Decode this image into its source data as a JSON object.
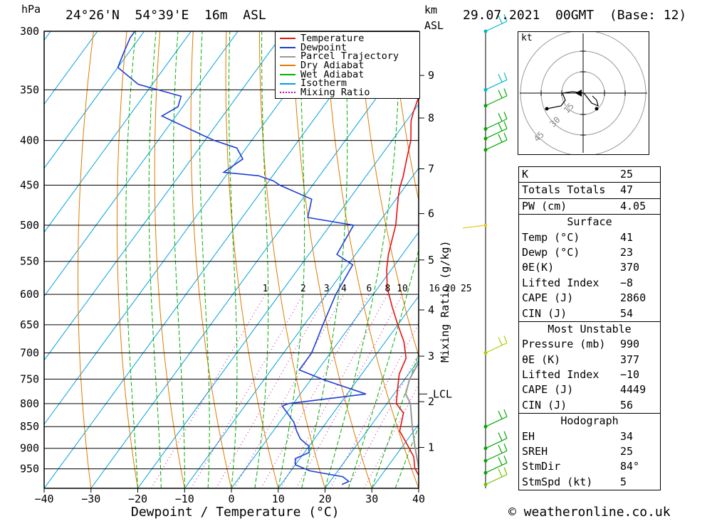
{
  "header": {
    "units_left": "hPa",
    "location": "24°26'N  54°39'E  16m  ASL",
    "km": "km",
    "asl": "ASL",
    "datetime": "29.07.2021  00GMT  (Base: 12)"
  },
  "chart_data": {
    "type": "line",
    "title": "24°26'N  54°39'E  16m  ASL",
    "xlabel": "Dewpoint / Temperature (°C)",
    "ylabel": "hPa",
    "xlim": [
      -40,
      40
    ],
    "x_ticks": [
      "−40",
      "−30",
      "−20",
      "−10",
      "0",
      "10",
      "20",
      "30",
      "40"
    ],
    "pressure_levels": [
      300,
      350,
      400,
      450,
      500,
      550,
      600,
      650,
      700,
      750,
      800,
      850,
      900,
      950
    ],
    "km_ticks": [
      "1",
      "2",
      "3",
      "4",
      "5",
      "6",
      "7",
      "8",
      "9"
    ],
    "km_pressures": [
      898,
      796,
      706,
      625,
      548,
      485,
      431,
      377,
      337
    ],
    "lcl_label": "LCL",
    "lcl_pressure": 780,
    "mixing_ratio_axis_label": "Mixing Ratio (g/kg)",
    "mixing_ratio_labels": [
      "1",
      "2",
      "3",
      "4",
      "6",
      "8",
      "10",
      "16",
      "20",
      "25"
    ],
    "legend": [
      "Temperature",
      "Dewpoint",
      "Parcel Trajectory",
      "Dry Adiabat",
      "Wet Adiabat",
      "Isotherm",
      "Mixing Ratio"
    ],
    "legend_placement": "top-right",
    "series": [
      {
        "name": "Temperature",
        "color": "#e81010",
        "points": [
          [
            41,
            990
          ],
          [
            39,
            975
          ],
          [
            37.5,
            962
          ],
          [
            36,
            948
          ],
          [
            34,
            920
          ],
          [
            30,
            885
          ],
          [
            27,
            860
          ],
          [
            25,
            820
          ],
          [
            22,
            800
          ],
          [
            20,
            770
          ],
          [
            18,
            740
          ],
          [
            17,
            710
          ],
          [
            14,
            680
          ],
          [
            10,
            650
          ],
          [
            6,
            620
          ],
          [
            2,
            590
          ],
          [
            -1,
            562
          ],
          [
            -3,
            540
          ],
          [
            -6,
            500
          ],
          [
            -10,
            463
          ],
          [
            -11,
            453
          ],
          [
            -12,
            440
          ],
          [
            -14,
            420
          ],
          [
            -16,
            400
          ],
          [
            -19,
            380
          ],
          [
            -20,
            370
          ],
          [
            -21,
            358
          ]
        ]
      },
      {
        "name": "Dewpoint",
        "color": "#1c3fd6",
        "points": [
          [
            23,
            990
          ],
          [
            24,
            982
          ],
          [
            22,
            970
          ],
          [
            14,
            955
          ],
          [
            10,
            940
          ],
          [
            9,
            925
          ],
          [
            11,
            910
          ],
          [
            10,
            895
          ],
          [
            7,
            878
          ],
          [
            5,
            860
          ],
          [
            3,
            840
          ],
          [
            -2,
            805
          ],
          [
            -1,
            800
          ],
          [
            14,
            780
          ],
          [
            3,
            752
          ],
          [
            -4,
            732
          ],
          [
            -4,
            720
          ],
          [
            -4,
            700
          ],
          [
            -6,
            650
          ],
          [
            -8,
            600
          ],
          [
            -9,
            555
          ],
          [
            -10,
            552
          ],
          [
            -14,
            540
          ],
          [
            -15,
            500
          ],
          [
            -26,
            490
          ],
          [
            -28,
            467
          ],
          [
            -37,
            450
          ],
          [
            -39,
            445
          ],
          [
            -43,
            439
          ],
          [
            -51,
            435
          ],
          [
            -49,
            420
          ],
          [
            -52,
            408
          ],
          [
            -58,
            400
          ],
          [
            -61,
            395
          ],
          [
            -73,
            375
          ],
          [
            -71,
            366
          ],
          [
            -72,
            356
          ],
          [
            -83,
            345
          ],
          [
            -90,
            330
          ],
          [
            -91,
            318
          ],
          [
            -92,
            305
          ],
          [
            -92,
            300
          ]
        ]
      },
      {
        "name": "Parcel Trajectory",
        "color": "#999999",
        "points": [
          [
            41,
            990
          ],
          [
            37,
            950
          ],
          [
            33,
            900
          ],
          [
            29,
            850
          ],
          [
            25,
            800
          ],
          [
            22.5,
            780
          ],
          [
            21,
            750
          ],
          [
            20,
            700
          ],
          [
            18,
            650
          ],
          [
            16,
            600
          ],
          [
            13,
            550
          ],
          [
            9,
            500
          ],
          [
            4,
            450
          ],
          [
            -3,
            400
          ],
          [
            -12,
            350
          ]
        ]
      }
    ]
  },
  "hodograph": {
    "unit": "kt",
    "ring_labels": [
      "15",
      "30",
      "45"
    ]
  },
  "indices": {
    "rows": [
      {
        "label": "K",
        "value": "25"
      },
      {
        "label": "Totals Totals",
        "value": "47"
      },
      {
        "label": "PW (cm)",
        "value": "4.05"
      }
    ]
  },
  "surface": {
    "title": "Surface",
    "rows": [
      {
        "label": "Temp (°C)",
        "value": "41"
      },
      {
        "label": "Dewp (°C)",
        "value": "23"
      },
      {
        "label": "θE(K)",
        "value": "370"
      },
      {
        "label": "Lifted Index",
        "value": "−8"
      },
      {
        "label": "CAPE (J)",
        "value": "2860"
      },
      {
        "label": "CIN (J)",
        "value": "54"
      }
    ]
  },
  "most_unstable": {
    "title": "Most Unstable",
    "rows": [
      {
        "label": "Pressure (mb)",
        "value": "990"
      },
      {
        "label": "θE (K)",
        "value": "377"
      },
      {
        "label": "Lifted Index",
        "value": "−10"
      },
      {
        "label": "CAPE (J)",
        "value": "4449"
      },
      {
        "label": "CIN (J)",
        "value": "56"
      }
    ]
  },
  "hodo_table": {
    "title": "Hodograph",
    "rows": [
      {
        "label": "EH",
        "value": "34"
      },
      {
        "label": "SREH",
        "value": "25"
      },
      {
        "label": "StmDir",
        "value": "84°"
      },
      {
        "label": "StmSpd (kt)",
        "value": "5"
      }
    ]
  },
  "footer": {
    "copyright": "© weatheronline.co.uk"
  },
  "colors": {
    "temperature": "#e81010",
    "dewpoint": "#1c3fd6",
    "parcel": "#999999",
    "dry_adiabat": "#e07a00",
    "wet_adiabat": "#00b000",
    "isotherm": "#00a0e0",
    "mixing_ratio": "#c000a0"
  }
}
